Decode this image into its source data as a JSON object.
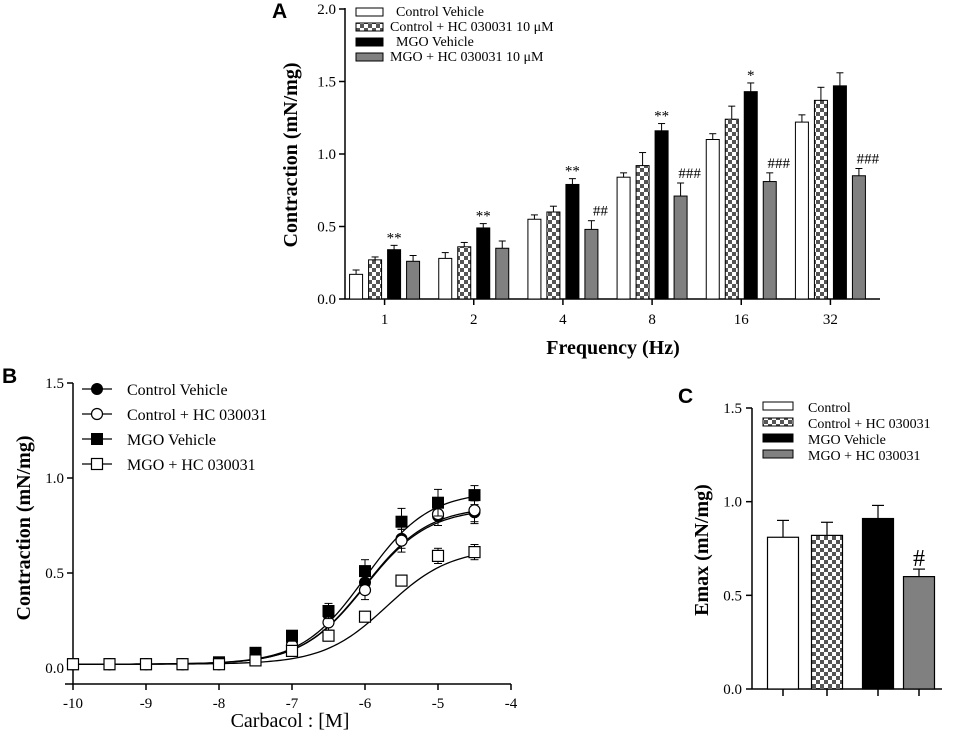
{
  "colors": {
    "control": "#ffffff",
    "hc": "checker",
    "mgo": "#000000",
    "mgo_hc": "#808080",
    "axis": "#000000"
  },
  "chart_data": [
    {
      "panel": "A",
      "type": "bar",
      "xlabel": "Frequency (Hz)",
      "ylabel": "Contraction (mN/mg)",
      "ylim": [
        0,
        2.0
      ],
      "yticks": [
        "0.0",
        "0.5",
        "1.0",
        "1.5",
        "2.0"
      ],
      "categories": [
        "1",
        "2",
        "4",
        "8",
        "16",
        "32"
      ],
      "series": [
        {
          "name": "Control Vehicle",
          "values": [
            0.17,
            0.28,
            0.55,
            0.84,
            1.1,
            1.22
          ],
          "errors": [
            0.03,
            0.04,
            0.03,
            0.03,
            0.04,
            0.05
          ]
        },
        {
          "name": "Control + HC 030031 10 μM",
          "values": [
            0.27,
            0.36,
            0.6,
            0.92,
            1.24,
            1.37
          ],
          "errors": [
            0.02,
            0.03,
            0.04,
            0.09,
            0.09,
            0.09
          ]
        },
        {
          "name": "MGO Vehicle",
          "values": [
            0.34,
            0.49,
            0.79,
            1.16,
            1.43,
            1.47
          ],
          "errors": [
            0.03,
            0.03,
            0.04,
            0.05,
            0.06,
            0.09
          ]
        },
        {
          "name": "MGO + HC 030031 10 μM",
          "values": [
            0.26,
            0.35,
            0.48,
            0.71,
            0.81,
            0.85
          ],
          "errors": [
            0.04,
            0.05,
            0.06,
            0.09,
            0.06,
            0.05
          ]
        }
      ],
      "annotations": [
        {
          "category": "1",
          "series": "MGO Vehicle",
          "text": "**"
        },
        {
          "category": "2",
          "series": "MGO Vehicle",
          "text": "**"
        },
        {
          "category": "4",
          "series": "MGO Vehicle",
          "text": "**"
        },
        {
          "category": "4",
          "series": "MGO + HC 030031 10 μM",
          "text": "##"
        },
        {
          "category": "8",
          "series": "MGO Vehicle",
          "text": "**"
        },
        {
          "category": "8",
          "series": "MGO + HC 030031 10 μM",
          "text": "###"
        },
        {
          "category": "16",
          "series": "MGO Vehicle",
          "text": "*"
        },
        {
          "category": "16",
          "series": "MGO + HC 030031 10 μM",
          "text": "###"
        },
        {
          "category": "32",
          "series": "MGO + HC 030031 10 μM",
          "text": "###"
        }
      ]
    },
    {
      "panel": "B",
      "type": "line",
      "xlabel": "Carbacol : [M]",
      "ylabel": "Contraction (mN/mg)",
      "xlim": [
        -10,
        -4
      ],
      "ylim": [
        0,
        1.5
      ],
      "xticks": [
        "-10",
        "-9",
        "-8",
        "-7",
        "-6",
        "-5",
        "-4"
      ],
      "yticks": [
        "0.0",
        "0.5",
        "1.0",
        "1.5"
      ],
      "x": [
        -10,
        -9.5,
        -9,
        -8.5,
        -8,
        -7.5,
        -7,
        -6.5,
        -6,
        -5.5,
        -5,
        -4.5
      ],
      "series": [
        {
          "name": "Control Vehicle",
          "marker": "filled-circle",
          "values": [
            0.02,
            0.02,
            0.02,
            0.02,
            0.02,
            0.06,
            0.14,
            0.28,
            0.45,
            0.68,
            0.8,
            0.82
          ],
          "errors": [
            0.01,
            0.01,
            0.01,
            0.01,
            0.01,
            0.02,
            0.03,
            0.04,
            0.05,
            0.05,
            0.05,
            0.06
          ],
          "fit": {
            "bottom": 0.02,
            "top": 0.84,
            "logEC50": -6.0,
            "hill": 1.0
          }
        },
        {
          "name": "Control + HC 030031",
          "marker": "open-circle",
          "values": [
            0.02,
            0.02,
            0.02,
            0.02,
            0.02,
            0.05,
            0.12,
            0.24,
            0.41,
            0.67,
            0.81,
            0.83
          ],
          "errors": [
            0.01,
            0.01,
            0.01,
            0.01,
            0.01,
            0.02,
            0.03,
            0.04,
            0.05,
            0.06,
            0.06,
            0.06
          ],
          "fit": {
            "bottom": 0.02,
            "top": 0.85,
            "logEC50": -6.0,
            "hill": 1.0
          }
        },
        {
          "name": "MGO Vehicle",
          "marker": "filled-square",
          "values": [
            0.02,
            0.02,
            0.02,
            0.02,
            0.03,
            0.08,
            0.17,
            0.3,
            0.51,
            0.77,
            0.87,
            0.91
          ],
          "errors": [
            0.01,
            0.01,
            0.01,
            0.01,
            0.01,
            0.02,
            0.03,
            0.04,
            0.06,
            0.07,
            0.07,
            0.05
          ],
          "fit": {
            "bottom": 0.02,
            "top": 0.93,
            "logEC50": -6.0,
            "hill": 1.0
          }
        },
        {
          "name": "MGO + HC 030031",
          "marker": "open-square",
          "values": [
            0.02,
            0.02,
            0.02,
            0.02,
            0.02,
            0.04,
            0.09,
            0.17,
            0.27,
            0.46,
            0.59,
            0.61
          ],
          "errors": [
            0.01,
            0.01,
            0.01,
            0.01,
            0.01,
            0.01,
            0.02,
            0.02,
            0.03,
            0.03,
            0.04,
            0.04
          ],
          "fit": {
            "bottom": 0.02,
            "top": 0.63,
            "logEC50": -5.7,
            "hill": 1.0
          }
        }
      ]
    },
    {
      "panel": "C",
      "type": "bar",
      "xlabel": "",
      "ylabel": "Emax  (mN/mg)",
      "ylim": [
        0,
        1.5
      ],
      "yticks": [
        "0.0",
        "0.5",
        "1.0",
        "1.5"
      ],
      "categories": [
        "Control",
        "Control + HC 030031",
        "MGO Vehicle",
        "MGO + HC 030031"
      ],
      "values": [
        0.81,
        0.82,
        0.91,
        0.6
      ],
      "errors": [
        0.09,
        0.07,
        0.07,
        0.04
      ],
      "annotations": [
        {
          "category": "MGO + HC 030031",
          "text": "#"
        }
      ]
    }
  ]
}
